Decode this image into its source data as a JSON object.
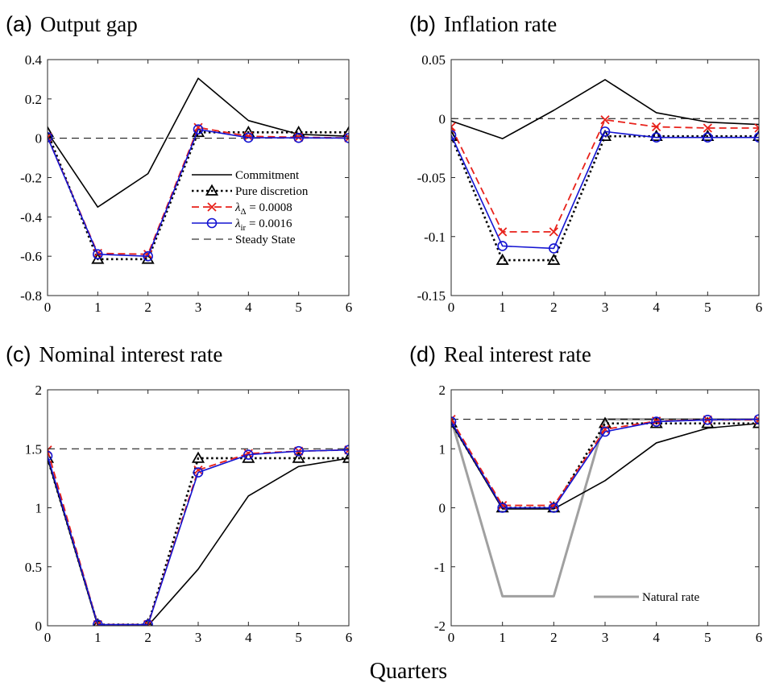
{
  "xlabel": "Quarters",
  "colors": {
    "commitment": "#000000",
    "discretion": "#000000",
    "lambda_delta": "#e8221b",
    "lambda_ir": "#1414d2",
    "steady": "#000000",
    "natural": "#a0a0a0"
  },
  "chart_data": [
    {
      "type": "line",
      "letter": "(a)",
      "title": "Output gap",
      "x": [
        0,
        1,
        2,
        3,
        4,
        5,
        6
      ],
      "ylim": [
        -0.8,
        0.4
      ],
      "yticks": [
        -0.8,
        -0.6,
        -0.4,
        -0.2,
        0,
        0.2,
        0.4
      ],
      "ytick_labels": [
        "-0.8",
        "-0.6",
        "-0.4",
        "-0.2",
        "0",
        "0.2",
        "0.4"
      ],
      "legend": {
        "placement": "lower-right",
        "entries": [
          {
            "key": "commitment",
            "label": "Commitment"
          },
          {
            "key": "discretion",
            "label": "Pure discretion"
          },
          {
            "key": "lambda_delta",
            "label_main": "λ",
            "label_sub": "Δ",
            "label_rest": " = 0.0008"
          },
          {
            "key": "lambda_ir",
            "label_main": "λ",
            "label_sub": "ir",
            "label_rest": " = 0.0016"
          },
          {
            "key": "steady",
            "label": "Steady State"
          }
        ]
      },
      "series": [
        {
          "key": "commitment",
          "values": [
            0.03,
            -0.35,
            -0.18,
            0.305,
            0.09,
            0.02,
            0.01
          ]
        },
        {
          "key": "discretion",
          "values": [
            0.03,
            -0.615,
            -0.615,
            0.03,
            0.03,
            0.03,
            0.03
          ]
        },
        {
          "key": "lambda_delta",
          "values": [
            0.005,
            -0.585,
            -0.59,
            0.055,
            0.01,
            0.005,
            0.002
          ]
        },
        {
          "key": "lambda_ir",
          "values": [
            0.005,
            -0.59,
            -0.6,
            0.045,
            0.003,
            0.002,
            0.001
          ]
        },
        {
          "key": "steady",
          "values": [
            0,
            0,
            0,
            0,
            0,
            0,
            0
          ]
        }
      ]
    },
    {
      "type": "line",
      "letter": "(b)",
      "title": "Inflation rate",
      "x": [
        0,
        1,
        2,
        3,
        4,
        5,
        6
      ],
      "ylim": [
        -0.15,
        0.05
      ],
      "yticks": [
        -0.15,
        -0.1,
        -0.05,
        0,
        0.05
      ],
      "ytick_labels": [
        "-0.15",
        "-0.1",
        "-0.05",
        "0",
        "0.05"
      ],
      "series": [
        {
          "key": "commitment",
          "values": [
            -0.002,
            -0.017,
            0.007,
            0.033,
            0.005,
            -0.003,
            -0.005
          ]
        },
        {
          "key": "discretion",
          "values": [
            -0.015,
            -0.12,
            -0.12,
            -0.015,
            -0.015,
            -0.015,
            -0.015
          ]
        },
        {
          "key": "lambda_delta",
          "values": [
            -0.007,
            -0.096,
            -0.096,
            -0.001,
            -0.007,
            -0.008,
            -0.008
          ]
        },
        {
          "key": "lambda_ir",
          "values": [
            -0.014,
            -0.108,
            -0.11,
            -0.011,
            -0.016,
            -0.016,
            -0.016
          ]
        },
        {
          "key": "steady",
          "values": [
            0,
            0,
            0,
            0,
            0,
            0,
            0
          ]
        }
      ]
    },
    {
      "type": "line",
      "letter": "(c)",
      "title": "Nominal interest rate",
      "x": [
        0,
        1,
        2,
        3,
        4,
        5,
        6
      ],
      "ylim": [
        0,
        2
      ],
      "yticks": [
        0,
        0.5,
        1,
        1.5,
        2
      ],
      "ytick_labels": [
        "0",
        "0.5",
        "1",
        "1.5",
        "2"
      ],
      "series": [
        {
          "key": "commitment",
          "values": [
            1.42,
            0,
            0,
            0.48,
            1.1,
            1.35,
            1.42
          ]
        },
        {
          "key": "discretion",
          "values": [
            1.42,
            0.01,
            0.01,
            1.42,
            1.42,
            1.42,
            1.42
          ]
        },
        {
          "key": "lambda_delta",
          "values": [
            1.49,
            0.01,
            0.01,
            1.32,
            1.46,
            1.48,
            1.49
          ]
        },
        {
          "key": "lambda_ir",
          "values": [
            1.44,
            0.01,
            0.01,
            1.3,
            1.45,
            1.48,
            1.49
          ]
        },
        {
          "key": "steady",
          "values": [
            1.5,
            1.5,
            1.5,
            1.5,
            1.5,
            1.5,
            1.5
          ]
        }
      ]
    },
    {
      "type": "line",
      "letter": "(d)",
      "title": "Real interest rate",
      "x": [
        0,
        1,
        2,
        3,
        4,
        5,
        6
      ],
      "ylim": [
        -2,
        2
      ],
      "yticks": [
        -2,
        -1,
        0,
        1,
        2
      ],
      "ytick_labels": [
        "-2",
        "-1",
        "0",
        "1",
        "2"
      ],
      "legend": {
        "placement": "lower-right",
        "entries": [
          {
            "key": "natural",
            "label": "Natural rate"
          }
        ]
      },
      "series": [
        {
          "key": "natural",
          "values": [
            1.5,
            -1.5,
            -1.5,
            1.5,
            1.5,
            1.5,
            1.5
          ]
        },
        {
          "key": "commitment",
          "values": [
            1.44,
            -0.02,
            -0.02,
            0.46,
            1.1,
            1.35,
            1.43
          ]
        },
        {
          "key": "discretion",
          "values": [
            1.44,
            0,
            0,
            1.43,
            1.43,
            1.43,
            1.43
          ]
        },
        {
          "key": "lambda_delta",
          "values": [
            1.5,
            0.04,
            0.04,
            1.33,
            1.47,
            1.49,
            1.49
          ]
        },
        {
          "key": "lambda_ir",
          "values": [
            1.46,
            0,
            0,
            1.29,
            1.46,
            1.49,
            1.5
          ]
        },
        {
          "key": "steady",
          "values": [
            1.5,
            1.5,
            1.5,
            1.5,
            1.5,
            1.5,
            1.5
          ]
        }
      ]
    }
  ]
}
